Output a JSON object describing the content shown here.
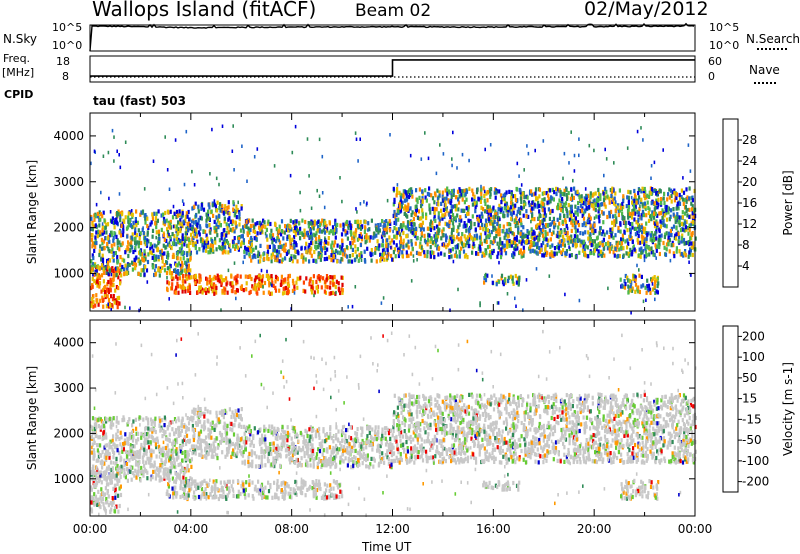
{
  "header": {
    "station": "Wallops Island (fitACF)",
    "beam": "Beam 02",
    "date": "02/May/2012"
  },
  "noise_panel": {
    "left_label": "N.Sky",
    "right_label": "N.Search",
    "ticks_left": [
      "10^5",
      "10^0"
    ],
    "ticks_right": [
      "10^5",
      "10^0"
    ]
  },
  "freq_panel": {
    "left_label_1": "Freq.",
    "left_label_2": "[MHz]",
    "right_label": "Nave",
    "ticks_left": [
      "18",
      "8"
    ],
    "ticks_right": [
      "60",
      "0"
    ]
  },
  "cpid": {
    "label": "CPID",
    "value": "tau (fast) 503"
  },
  "x_axis": {
    "title": "Time UT",
    "ticks": [
      "00:00",
      "04:00",
      "08:00",
      "12:00",
      "16:00",
      "20:00",
      "00:00"
    ]
  },
  "chart_data": [
    {
      "type": "line",
      "title": "N.Sky / N.Search",
      "x": [
        "00:00",
        "04:00",
        "08:00",
        "12:00",
        "16:00",
        "20:00",
        "24:00"
      ],
      "series": [
        {
          "name": "N.Sky",
          "values": [
            63000,
            30000,
            40000,
            45000,
            40000,
            50000,
            63000
          ]
        }
      ],
      "ylim": [
        1,
        100000
      ],
      "yscale": "log"
    },
    {
      "type": "line",
      "title": "Freq. [MHz] / Nave",
      "x": [
        "00:00",
        "12:00",
        "12:00",
        "24:00"
      ],
      "series": [
        {
          "name": "Freq.",
          "values": [
            10.3,
            10.3,
            16.5,
            16.5
          ]
        },
        {
          "name": "Nave",
          "values": [
            5,
            5,
            5,
            5
          ]
        }
      ],
      "ylim": [
        8,
        18
      ]
    },
    {
      "type": "heatmap",
      "title": "Power [dB]",
      "xlabel": "Time UT",
      "ylabel": "Slant Range [km]",
      "xlim": [
        "00:00",
        "24:00"
      ],
      "ylim": [
        180,
        4500
      ],
      "yticks": [
        1000,
        2000,
        3000,
        4000
      ],
      "colorbar": {
        "label": "Power [dB]",
        "ticks": [
          "4",
          "8",
          "12",
          "16",
          "20",
          "24",
          "28"
        ],
        "colors": [
          "#0000dd",
          "#1e64c8",
          "#2e8b57",
          "#4db84d",
          "#e6c000",
          "#ff8c00",
          "#ff4500",
          "#dd0000"
        ]
      },
      "echo_regions": [
        {
          "t_start": 0.0,
          "t_end": 1.2,
          "r_start": 300,
          "r_end": 1200,
          "level": "high"
        },
        {
          "t_start": 0.0,
          "t_end": 4.0,
          "r_start": 1000,
          "r_end": 2400,
          "level": "medium"
        },
        {
          "t_start": 3.0,
          "t_end": 10.0,
          "r_start": 600,
          "r_end": 1000,
          "level": "high"
        },
        {
          "t_start": 4.0,
          "t_end": 6.0,
          "r_start": 1500,
          "r_end": 2600,
          "level": "medium"
        },
        {
          "t_start": 6.0,
          "t_end": 12.0,
          "r_start": 1300,
          "r_end": 2200,
          "level": "medium"
        },
        {
          "t_start": 12.0,
          "t_end": 24.0,
          "r_start": 1400,
          "r_end": 2900,
          "level": "medium"
        },
        {
          "t_start": 15.5,
          "t_end": 17.0,
          "r_start": 800,
          "r_end": 1000,
          "level": "medium"
        },
        {
          "t_start": 21.0,
          "t_end": 22.5,
          "r_start": 600,
          "r_end": 1000,
          "level": "medium"
        }
      ]
    },
    {
      "type": "heatmap",
      "title": "Velocity [m s-1]",
      "xlabel": "Time UT",
      "ylabel": "Slant Range [km]",
      "xlim": [
        "00:00",
        "24:00"
      ],
      "ylim": [
        180,
        4500
      ],
      "yticks": [
        1000,
        2000,
        3000,
        4000
      ],
      "colorbar": {
        "label": "Velocity [m s-1]",
        "ticks": [
          "200",
          "100",
          "50",
          "15",
          "-15",
          "-50",
          "-100",
          "-200"
        ],
        "colors": [
          "#0000cc",
          "#2060b0",
          "#2e8b57",
          "#66cc33",
          "#c8c8c8",
          "#ff9900",
          "#ff6600",
          "#ee0000"
        ]
      },
      "dominant_value": "-15..15"
    }
  ]
}
